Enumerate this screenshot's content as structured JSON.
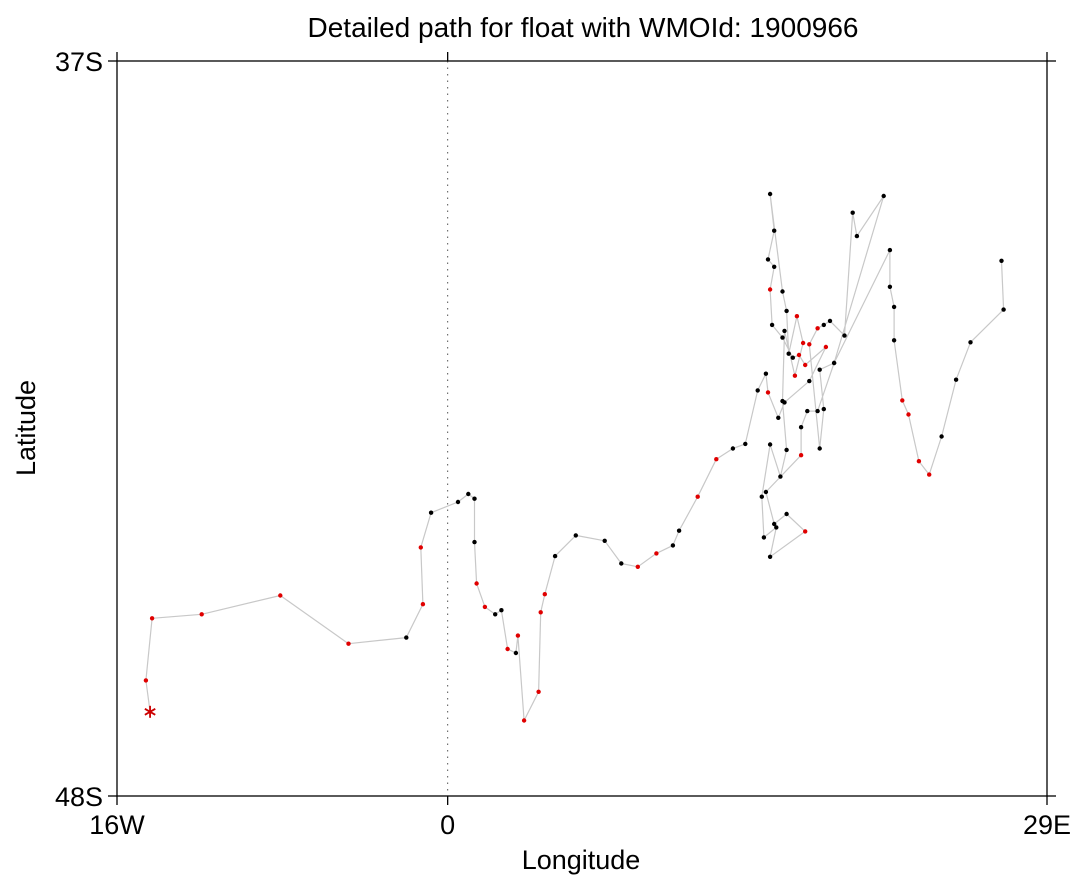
{
  "chart_data": {
    "type": "scatter",
    "title": "Detailed path for float with WMOId: 1900966",
    "xlabel": "Longitude",
    "ylabel": "Latitude",
    "xlim": [
      -16,
      29
    ],
    "ylim": [
      -48,
      -37
    ],
    "x_ticks": [
      {
        "value": -16,
        "label": "16W"
      },
      {
        "value": 0,
        "label": "0"
      },
      {
        "value": 29,
        "label": "29E"
      }
    ],
    "y_ticks": [
      {
        "value": -37,
        "label": "37S"
      },
      {
        "value": -48,
        "label": "48S"
      }
    ],
    "zero_meridian_line": true,
    "colors": {
      "path_line": "#c8c8c8",
      "normal_point": "#000000",
      "highlight_point": "#e00000",
      "start_marker": "#cc0000",
      "meridian": "#555555"
    },
    "start_marker": {
      "lon": -14.4,
      "lat": -46.74,
      "symbol": "asterisk"
    },
    "path": [
      {
        "lon": -14.4,
        "lat": -46.74,
        "flag": "start"
      },
      {
        "lon": -14.6,
        "lat": -46.27,
        "flag": "red"
      },
      {
        "lon": -14.3,
        "lat": -45.34,
        "flag": "red"
      },
      {
        "lon": -11.9,
        "lat": -45.28,
        "flag": "red"
      },
      {
        "lon": -8.1,
        "lat": -45.0,
        "flag": "red"
      },
      {
        "lon": -4.8,
        "lat": -45.72,
        "flag": "red"
      },
      {
        "lon": -2.0,
        "lat": -45.63,
        "flag": "black"
      },
      {
        "lon": -1.2,
        "lat": -45.13,
        "flag": "red"
      },
      {
        "lon": -1.3,
        "lat": -44.28,
        "flag": "red"
      },
      {
        "lon": -0.8,
        "lat": -43.76,
        "flag": "black"
      },
      {
        "lon": 0.5,
        "lat": -43.6,
        "flag": "black"
      },
      {
        "lon": 1.0,
        "lat": -43.48,
        "flag": "black"
      },
      {
        "lon": 1.3,
        "lat": -43.55,
        "flag": "black"
      },
      {
        "lon": 1.3,
        "lat": -44.2,
        "flag": "black"
      },
      {
        "lon": 1.4,
        "lat": -44.82,
        "flag": "red"
      },
      {
        "lon": 1.8,
        "lat": -45.17,
        "flag": "red"
      },
      {
        "lon": 2.3,
        "lat": -45.28,
        "flag": "black"
      },
      {
        "lon": 2.6,
        "lat": -45.22,
        "flag": "black"
      },
      {
        "lon": 2.9,
        "lat": -45.8,
        "flag": "red"
      },
      {
        "lon": 3.3,
        "lat": -45.86,
        "flag": "black"
      },
      {
        "lon": 3.4,
        "lat": -45.6,
        "flag": "red"
      },
      {
        "lon": 3.7,
        "lat": -46.87,
        "flag": "red"
      },
      {
        "lon": 4.4,
        "lat": -46.44,
        "flag": "red"
      },
      {
        "lon": 4.5,
        "lat": -45.25,
        "flag": "red"
      },
      {
        "lon": 4.7,
        "lat": -44.98,
        "flag": "red"
      },
      {
        "lon": 5.2,
        "lat": -44.41,
        "flag": "black"
      },
      {
        "lon": 6.2,
        "lat": -44.1,
        "flag": "black"
      },
      {
        "lon": 7.6,
        "lat": -44.18,
        "flag": "black"
      },
      {
        "lon": 8.4,
        "lat": -44.52,
        "flag": "black"
      },
      {
        "lon": 9.2,
        "lat": -44.57,
        "flag": "red"
      },
      {
        "lon": 10.1,
        "lat": -44.37,
        "flag": "red"
      },
      {
        "lon": 10.9,
        "lat": -44.25,
        "flag": "black"
      },
      {
        "lon": 11.2,
        "lat": -44.03,
        "flag": "black"
      },
      {
        "lon": 12.1,
        "lat": -43.52,
        "flag": "red"
      },
      {
        "lon": 13.0,
        "lat": -42.96,
        "flag": "red"
      },
      {
        "lon": 13.8,
        "lat": -42.8,
        "flag": "black"
      },
      {
        "lon": 14.4,
        "lat": -42.73,
        "flag": "black"
      },
      {
        "lon": 15.0,
        "lat": -41.93,
        "flag": "black"
      },
      {
        "lon": 15.4,
        "lat": -41.68,
        "flag": "black"
      },
      {
        "lon": 15.5,
        "lat": -41.96,
        "flag": "red"
      },
      {
        "lon": 16.0,
        "lat": -42.34,
        "flag": "black"
      },
      {
        "lon": 16.3,
        "lat": -42.11,
        "flag": "black"
      },
      {
        "lon": 17.5,
        "lat": -41.79,
        "flag": "black"
      },
      {
        "lon": 18.3,
        "lat": -41.28,
        "flag": "red"
      },
      {
        "lon": 17.3,
        "lat": -41.55,
        "flag": "red"
      },
      {
        "lon": 17.0,
        "lat": -41.4,
        "flag": "red"
      },
      {
        "lon": 16.7,
        "lat": -41.44,
        "flag": "black"
      },
      {
        "lon": 16.2,
        "lat": -41.14,
        "flag": "black"
      },
      {
        "lon": 15.7,
        "lat": -40.95,
        "flag": "black"
      },
      {
        "lon": 15.6,
        "lat": -40.42,
        "flag": "red"
      },
      {
        "lon": 15.8,
        "lat": -40.08,
        "flag": "black"
      },
      {
        "lon": 15.5,
        "lat": -39.97,
        "flag": "black"
      },
      {
        "lon": 15.8,
        "lat": -39.54,
        "flag": "black"
      },
      {
        "lon": 15.6,
        "lat": -38.99,
        "flag": "black"
      },
      {
        "lon": 16.2,
        "lat": -40.45,
        "flag": "black"
      },
      {
        "lon": 16.4,
        "lat": -40.74,
        "flag": "black"
      },
      {
        "lon": 16.5,
        "lat": -41.38,
        "flag": "black"
      },
      {
        "lon": 16.9,
        "lat": -40.82,
        "flag": "red"
      },
      {
        "lon": 17.2,
        "lat": -41.22,
        "flag": "red"
      },
      {
        "lon": 16.8,
        "lat": -41.71,
        "flag": "red"
      },
      {
        "lon": 16.3,
        "lat": -41.04,
        "flag": "black"
      },
      {
        "lon": 16.2,
        "lat": -42.09,
        "flag": "black"
      },
      {
        "lon": 16.4,
        "lat": -42.82,
        "flag": "black"
      },
      {
        "lon": 16.1,
        "lat": -43.22,
        "flag": "black"
      },
      {
        "lon": 15.6,
        "lat": -42.74,
        "flag": "black"
      },
      {
        "lon": 15.2,
        "lat": -43.52,
        "flag": "black"
      },
      {
        "lon": 15.3,
        "lat": -44.13,
        "flag": "black"
      },
      {
        "lon": 15.9,
        "lat": -43.98,
        "flag": "black"
      },
      {
        "lon": 15.6,
        "lat": -44.42,
        "flag": "black"
      },
      {
        "lon": 17.3,
        "lat": -44.04,
        "flag": "red"
      },
      {
        "lon": 16.4,
        "lat": -43.78,
        "flag": "black"
      },
      {
        "lon": 15.8,
        "lat": -43.93,
        "flag": "black"
      },
      {
        "lon": 15.4,
        "lat": -43.45,
        "flag": "black"
      },
      {
        "lon": 17.1,
        "lat": -42.9,
        "flag": "red"
      },
      {
        "lon": 17.1,
        "lat": -42.48,
        "flag": "black"
      },
      {
        "lon": 17.4,
        "lat": -42.24,
        "flag": "black"
      },
      {
        "lon": 17.9,
        "lat": -42.24,
        "flag": "black"
      },
      {
        "lon": 18.7,
        "lat": -41.52,
        "flag": "black"
      },
      {
        "lon": 18.0,
        "lat": -41.62,
        "flag": "black"
      },
      {
        "lon": 18.2,
        "lat": -42.21,
        "flag": "black"
      },
      {
        "lon": 18.0,
        "lat": -42.8,
        "flag": "black"
      },
      {
        "lon": 17.5,
        "lat": -41.24,
        "flag": "red"
      },
      {
        "lon": 17.9,
        "lat": -41.0,
        "flag": "red"
      },
      {
        "lon": 18.2,
        "lat": -40.95,
        "flag": "black"
      },
      {
        "lon": 18.5,
        "lat": -40.89,
        "flag": "black"
      },
      {
        "lon": 19.2,
        "lat": -41.11,
        "flag": "black"
      },
      {
        "lon": 19.6,
        "lat": -39.27,
        "flag": "black"
      },
      {
        "lon": 19.8,
        "lat": -39.62,
        "flag": "black"
      },
      {
        "lon": 21.1,
        "lat": -39.02,
        "flag": "black"
      },
      {
        "lon": 18.7,
        "lat": -41.52,
        "flag": "black"
      },
      {
        "lon": 21.4,
        "lat": -39.83,
        "flag": "black"
      },
      {
        "lon": 21.4,
        "lat": -40.38,
        "flag": "black"
      },
      {
        "lon": 21.6,
        "lat": -40.68,
        "flag": "black"
      },
      {
        "lon": 21.6,
        "lat": -41.18,
        "flag": "black"
      },
      {
        "lon": 22.0,
        "lat": -42.08,
        "flag": "red"
      },
      {
        "lon": 22.3,
        "lat": -42.29,
        "flag": "red"
      },
      {
        "lon": 22.8,
        "lat": -42.99,
        "flag": "red"
      },
      {
        "lon": 23.3,
        "lat": -43.19,
        "flag": "red"
      },
      {
        "lon": 23.9,
        "lat": -42.62,
        "flag": "black"
      },
      {
        "lon": 24.6,
        "lat": -41.77,
        "flag": "black"
      },
      {
        "lon": 25.3,
        "lat": -41.21,
        "flag": "black"
      },
      {
        "lon": 26.9,
        "lat": -40.72,
        "flag": "black"
      },
      {
        "lon": 26.8,
        "lat": -39.99,
        "flag": "black"
      }
    ]
  }
}
